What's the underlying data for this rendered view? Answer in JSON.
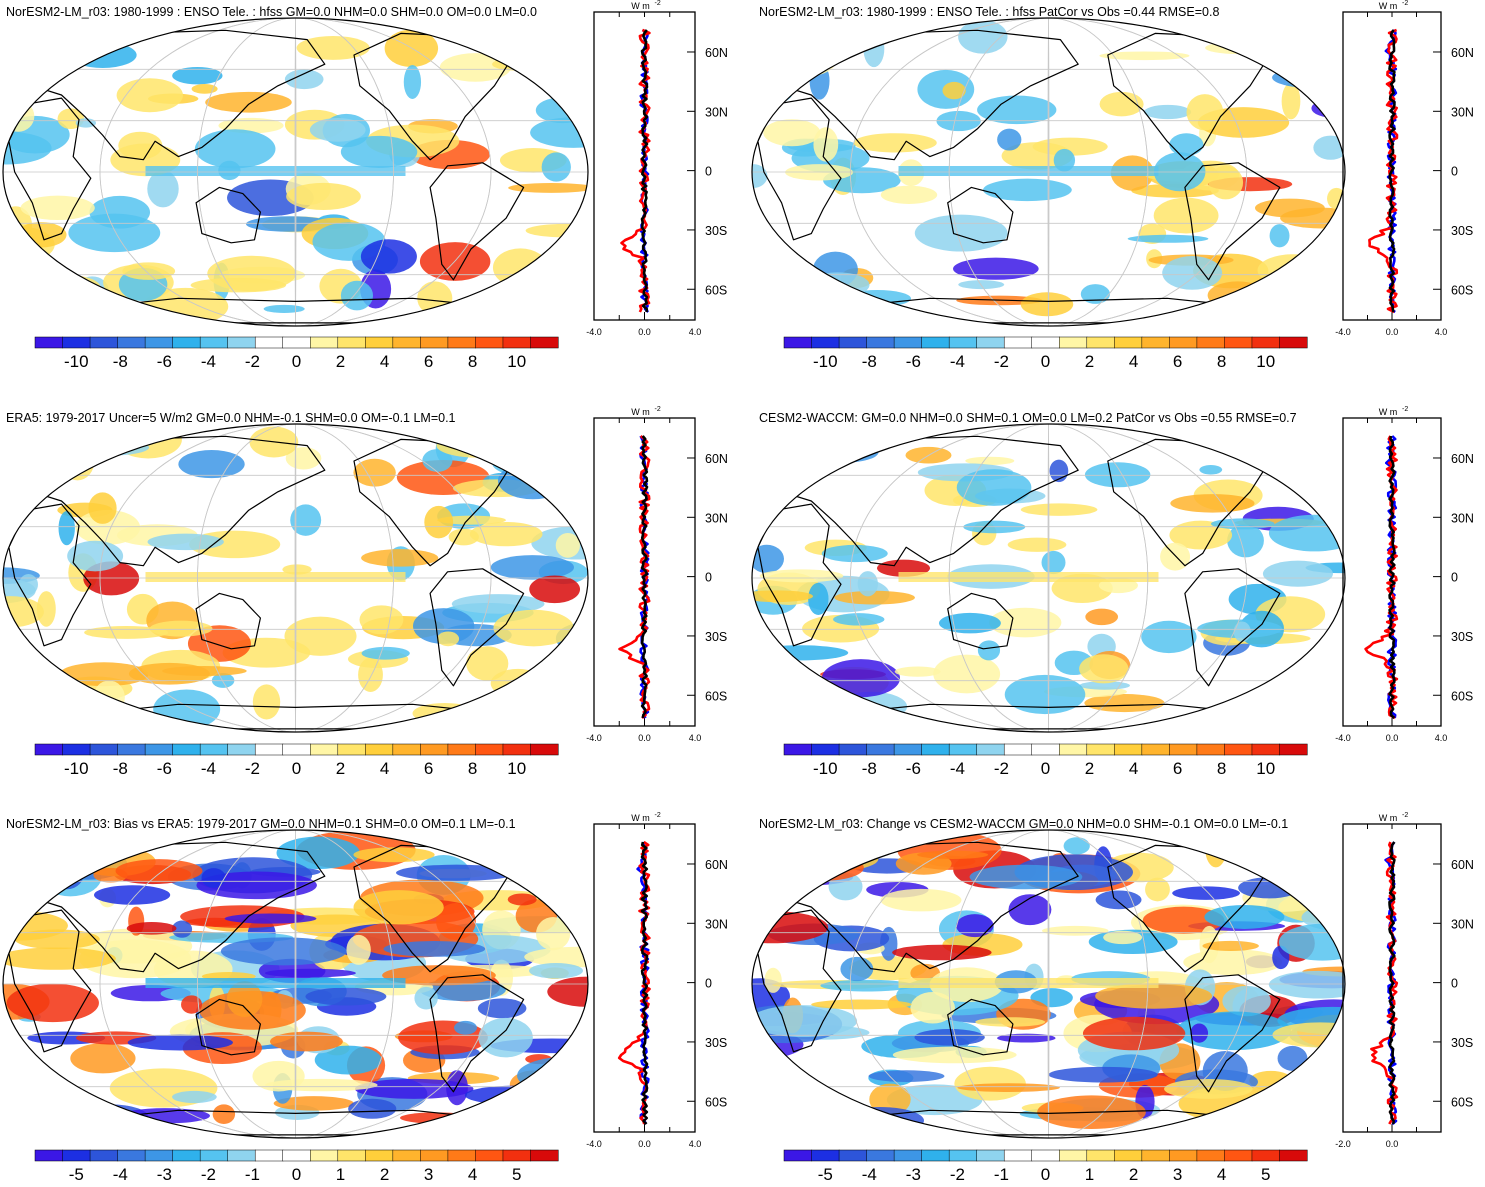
{
  "colors": {
    "diverging": [
      "#3b17e6",
      "#1c2fe3",
      "#2d55da",
      "#3a78df",
      "#3d96e6",
      "#2fb1ec",
      "#55c3f0",
      "#8fd4ef",
      "#ffffff",
      "#ffffff",
      "#fff6a6",
      "#ffe56a",
      "#ffcf3b",
      "#ffb42d",
      "#ff9a22",
      "#ff7a18",
      "#ff5612",
      "#f2300f",
      "#d80a0a"
    ],
    "land": "#ffffff",
    "coast": "#000000",
    "grid": "#c8c8c8",
    "line_obs": "#0000ff",
    "line_model": "#ff0000",
    "line_main": "#000000"
  },
  "panels": [
    {
      "title": "NorESM2-LM_r03: 1980-1999 : ENSO Tele. : hfss GM=0.0 NHM=0.0 SHM=0.0 OM=0.0 LM=0.0",
      "colorbar_labels": [
        "-10",
        "-8",
        "-6",
        "-4",
        "-2",
        "0",
        "2",
        "4",
        "6",
        "8",
        "10"
      ],
      "zonal": {
        "unit": "W m",
        "unit_sup": "-2",
        "xticks": [
          "-4.0",
          "0.0",
          "4.0"
        ],
        "lat_labels": [
          "60N",
          "30N",
          "0",
          "30S",
          "60S"
        ]
      }
    },
    {
      "title": "NorESM2-LM_r03: 1980-1999 : ENSO Tele. : hfss PatCor vs Obs =0.44 RMSE=0.8",
      "colorbar_labels": [
        "-10",
        "-8",
        "-6",
        "-4",
        "-2",
        "0",
        "2",
        "4",
        "6",
        "8",
        "10"
      ],
      "zonal": {
        "unit": "W m",
        "unit_sup": "-2",
        "xticks": [
          "-4.0",
          "0.0",
          "4.0"
        ],
        "lat_labels": [
          "60N",
          "30N",
          "0",
          "30S",
          "60S"
        ]
      }
    },
    {
      "title": "ERA5: 1979-2017 Uncer=5 W/m2 GM=0.0 NHM=-0.1 SHM=0.0 OM=-0.1 LM=0.1",
      "colorbar_labels": [
        "-10",
        "-8",
        "-6",
        "-4",
        "-2",
        "0",
        "2",
        "4",
        "6",
        "8",
        "10"
      ],
      "zonal": {
        "unit": "W m",
        "unit_sup": "-2",
        "xticks": [
          "-4.0",
          "0.0",
          "4.0"
        ],
        "lat_labels": [
          "60N",
          "30N",
          "0",
          "30S",
          "60S"
        ]
      }
    },
    {
      "title": "CESM2-WACCM: GM=0.0 NHM=0.0 SHM=0.1 OM=0.0 LM=0.2 PatCor vs Obs =0.55 RMSE=0.7",
      "colorbar_labels": [
        "-10",
        "-8",
        "-6",
        "-4",
        "-2",
        "0",
        "2",
        "4",
        "6",
        "8",
        "10"
      ],
      "zonal": {
        "unit": "W m",
        "unit_sup": "-2",
        "xticks": [
          "-4.0",
          "0.0",
          "4.0"
        ],
        "lat_labels": [
          "60N",
          "30N",
          "0",
          "30S",
          "60S"
        ]
      }
    },
    {
      "title": "NorESM2-LM_r03: Bias vs ERA5: 1979-2017 GM=0.0 NHM=0.1 SHM=0.0 OM=0.1 LM=-0.1",
      "colorbar_labels": [
        "-5",
        "-4",
        "-3",
        "-2",
        "-1",
        "0",
        "1",
        "2",
        "3",
        "4",
        "5"
      ],
      "zonal": {
        "unit": "W m",
        "unit_sup": "-2",
        "xticks": [
          "-4.0",
          "0.0",
          "4.0"
        ],
        "lat_labels": [
          "60N",
          "30N",
          "0",
          "30S",
          "60S"
        ]
      }
    },
    {
      "title": "NorESM2-LM_r03: Change vs CESM2-WACCM GM=0.0 NHM=0.0 SHM=-0.1 OM=0.0 LM=-0.1",
      "colorbar_labels": [
        "-5",
        "-4",
        "-3",
        "-2",
        "-1",
        "0",
        "1",
        "2",
        "3",
        "4",
        "5"
      ],
      "zonal": {
        "unit": "W m",
        "unit_sup": "-2",
        "xticks": [
          "-2.0",
          "0.0"
        ],
        "lat_labels": [
          "60N",
          "30N",
          "0",
          "30S",
          "60S"
        ]
      }
    }
  ]
}
